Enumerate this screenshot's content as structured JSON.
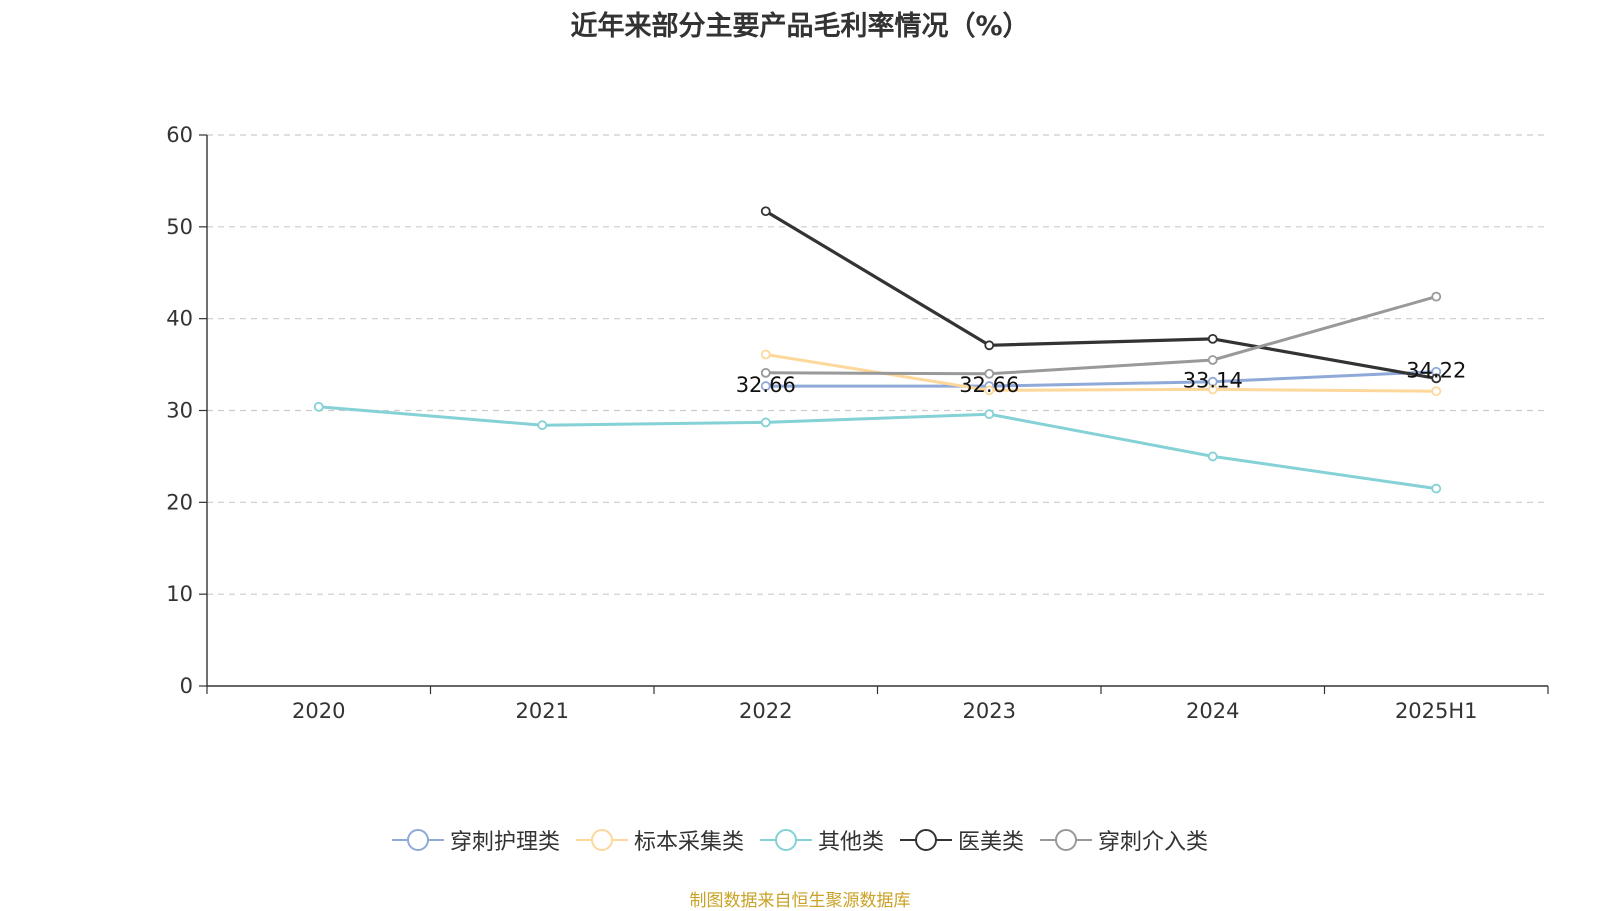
{
  "chart_data": {
    "type": "line",
    "title": "近年来部分主要产品毛利率情况（%）",
    "xlabel": "",
    "ylabel": "",
    "categories": [
      "2020",
      "2021",
      "2022",
      "2023",
      "2024",
      "2025H1"
    ],
    "ylim": [
      0,
      60
    ],
    "yticks": [
      0,
      10,
      20,
      30,
      40,
      50,
      60
    ],
    "grid": true,
    "legend_position": "bottom",
    "series": [
      {
        "name": "穿刺护理类",
        "color": "#8fa9d8",
        "values": [
          null,
          null,
          32.66,
          32.66,
          33.14,
          34.22
        ],
        "data_labels": [
          null,
          null,
          "32.66",
          "32.66",
          "33.14",
          "34.22"
        ]
      },
      {
        "name": "标本采集类",
        "color": "#fdd89a",
        "values": [
          null,
          null,
          36.1,
          32.2,
          32.3,
          32.1
        ]
      },
      {
        "name": "其他类",
        "color": "#84d1d6",
        "values": [
          30.4,
          28.4,
          28.7,
          29.6,
          25.0,
          21.5
        ]
      },
      {
        "name": "医美类",
        "color": "#333333",
        "values": [
          null,
          null,
          51.7,
          37.1,
          37.8,
          33.5
        ]
      },
      {
        "name": "穿刺介入类",
        "color": "#999999",
        "values": [
          null,
          null,
          34.1,
          34.0,
          35.5,
          42.4
        ]
      }
    ]
  },
  "source_note": "制图数据来自恒生聚源数据库"
}
